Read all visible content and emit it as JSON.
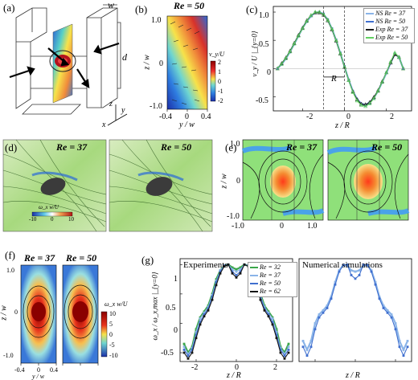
{
  "panels": {
    "a": {
      "label": "(a)",
      "axis_w": "w",
      "axis_d": "d",
      "axis_z": "z",
      "axis_y": "y",
      "axis_x": "x"
    },
    "b": {
      "label": "(b)",
      "re": "Re = 50",
      "ylabel": "z / w",
      "xlabel": "y / w",
      "yticks": [
        "1.0",
        "0",
        "-1.0"
      ],
      "xticks": [
        "-0.4",
        "0",
        "0.4"
      ],
      "cbar_title": "v_y/U",
      "cbar_ticks": [
        "2",
        "1",
        "0",
        "-1",
        "-2"
      ]
    },
    "c": {
      "label": "(c)",
      "ylabel": "v_y / U |_{y=0}",
      "xlabel": "z / R",
      "xticks": [
        "-2",
        "0",
        "2"
      ],
      "yticks": [
        "1.0",
        "0.5",
        "0",
        "-0.5"
      ],
      "annotation": "R",
      "legend": [
        "NS   Re = 37",
        "NS   Re = 50",
        "Exp  Re = 37",
        "Exp  Re = 50"
      ]
    },
    "d": {
      "label": "(d)",
      "re_left": "Re = 37",
      "re_right": "Re = 50",
      "cbar_title": "ω_x w/U",
      "cbar_ticks": [
        "-10",
        "0",
        "10"
      ]
    },
    "e": {
      "label": "(e)",
      "re_left": "Re = 37",
      "re_right": "Re = 50",
      "ylabel": "z / w",
      "yticks": [
        "1.0",
        "0",
        "-1.0"
      ],
      "xticks": [
        "-1.0",
        "0",
        "1.0"
      ]
    },
    "f": {
      "label": "(f)",
      "re_left": "Re = 37",
      "re_right": "Re = 50",
      "ylabel": "z / w",
      "xlabel": "y / w",
      "yticks": [
        "1.0",
        "0",
        "-1.0"
      ],
      "xticks": [
        "-0.4",
        "0",
        "0.4"
      ],
      "cbar_title": "ω_x w/U",
      "cbar_ticks": [
        "10",
        "5",
        "0",
        "-5",
        "-10"
      ]
    },
    "g": {
      "label": "(g)",
      "title_left": "Experiments",
      "title_right": "Numerical simulations",
      "ylabel": "ω_x / ω_x,max |_{y=0}",
      "xlabel_left": "z / R",
      "xlabel_right": "z / R",
      "xticks": [
        "-2",
        "0",
        "2"
      ],
      "yticks": [
        "1",
        "0.5",
        "0",
        "-0.5"
      ],
      "legend": [
        "Re = 32",
        "Re = 37",
        "Re = 50",
        "Re = 62"
      ]
    }
  },
  "colors": {
    "ns37": "#8ab4e8",
    "ns50": "#3f6fcf",
    "exp37": "#1a1a1a",
    "exp50": "#5fcf5f",
    "re32": "#3aa64a",
    "re62": "#151515"
  },
  "chart_data": [
    {
      "type": "line",
      "panel": "c",
      "xlabel": "z / R",
      "ylabel": "v_y / U |_{y=0}",
      "xlim": [
        -3.4,
        3.2
      ],
      "ylim": [
        -0.75,
        1.1
      ],
      "x": [
        -3.2,
        -3.0,
        -2.8,
        -2.6,
        -2.4,
        -2.2,
        -2.0,
        -1.8,
        -1.6,
        -1.4,
        -1.2,
        -1.0,
        -0.8,
        -0.6,
        -0.4,
        -0.2,
        0.0,
        0.2,
        0.4,
        0.6,
        0.8,
        1.0,
        1.2,
        1.4,
        1.6,
        1.8,
        2.0,
        2.2,
        2.4,
        2.6,
        2.8
      ],
      "series": [
        {
          "name": "NS Re = 37",
          "values": [
            0.0,
            0.08,
            0.18,
            0.3,
            0.44,
            0.58,
            0.72,
            0.84,
            0.93,
            0.99,
            1.0,
            0.96,
            0.86,
            0.7,
            0.5,
            0.27,
            0.03,
            -0.2,
            -0.4,
            -0.54,
            -0.62,
            -0.64,
            -0.6,
            -0.52,
            -0.4,
            -0.24,
            -0.08,
            0.1,
            0.26,
            0.2,
            0.0
          ]
        },
        {
          "name": "NS Re = 50",
          "values": [
            0.0,
            0.07,
            0.17,
            0.29,
            0.43,
            0.57,
            0.71,
            0.83,
            0.93,
            0.99,
            1.0,
            0.97,
            0.87,
            0.71,
            0.51,
            0.28,
            0.04,
            -0.2,
            -0.41,
            -0.56,
            -0.64,
            -0.66,
            -0.62,
            -0.53,
            -0.4,
            -0.24,
            -0.07,
            0.11,
            0.27,
            0.2,
            0.0
          ]
        },
        {
          "name": "Exp Re = 37",
          "values": [
            0.0,
            0.09,
            0.19,
            0.31,
            0.45,
            0.59,
            0.72,
            0.85,
            0.94,
            0.99,
            0.99,
            0.95,
            0.85,
            0.69,
            0.49,
            0.26,
            0.02,
            -0.21,
            -0.41,
            -0.55,
            -0.63,
            -0.64,
            -0.6,
            -0.51,
            -0.39,
            -0.23,
            -0.07,
            0.1,
            0.25,
            0.2,
            0.0
          ]
        },
        {
          "name": "Exp Re = 50",
          "values": [
            0.0,
            0.08,
            0.18,
            0.3,
            0.44,
            0.58,
            0.71,
            0.84,
            0.94,
            1.0,
            1.0,
            0.96,
            0.86,
            0.7,
            0.5,
            0.27,
            0.03,
            -0.21,
            -0.42,
            -0.57,
            -0.65,
            -0.67,
            -0.62,
            -0.53,
            -0.4,
            -0.24,
            -0.07,
            0.12,
            0.28,
            0.2,
            0.0
          ]
        }
      ]
    },
    {
      "type": "line",
      "panel": "g-experiments",
      "xlabel": "z / R",
      "ylabel": "ω_x / ω_x,max |_{y=0}",
      "xlim": [
        -2.8,
        2.8
      ],
      "ylim": [
        -0.65,
        1.1
      ],
      "x": [
        -2.6,
        -2.4,
        -2.2,
        -2.0,
        -1.8,
        -1.6,
        -1.4,
        -1.2,
        -1.0,
        -0.8,
        -0.6,
        -0.4,
        -0.2,
        0.0,
        0.2,
        0.4,
        0.6,
        0.8,
        1.0,
        1.2,
        1.4,
        1.6,
        1.8,
        2.0,
        2.2,
        2.4,
        2.6
      ],
      "series": [
        {
          "name": "Re = 32",
          "values": [
            -0.35,
            -0.5,
            -0.4,
            -0.1,
            0.1,
            0.2,
            0.3,
            0.5,
            0.75,
            0.9,
            0.98,
            1.0,
            0.95,
            0.92,
            0.95,
            1.0,
            0.98,
            0.9,
            0.75,
            0.5,
            0.3,
            0.2,
            0.1,
            -0.1,
            -0.4,
            -0.5,
            -0.35
          ]
        },
        {
          "name": "Re = 37",
          "values": [
            -0.4,
            -0.52,
            -0.42,
            -0.15,
            0.08,
            0.18,
            0.28,
            0.48,
            0.72,
            0.9,
            0.98,
            1.0,
            0.92,
            0.88,
            0.92,
            1.0,
            0.98,
            0.9,
            0.72,
            0.48,
            0.28,
            0.18,
            0.08,
            -0.15,
            -0.42,
            -0.52,
            -0.4
          ]
        },
        {
          "name": "Re = 50",
          "values": [
            -0.45,
            -0.55,
            -0.45,
            -0.2,
            0.02,
            0.15,
            0.25,
            0.45,
            0.7,
            0.88,
            0.98,
            1.0,
            0.88,
            0.82,
            0.88,
            1.0,
            0.98,
            0.88,
            0.7,
            0.45,
            0.25,
            0.15,
            0.02,
            -0.2,
            -0.45,
            -0.55,
            -0.45
          ]
        },
        {
          "name": "Re = 62",
          "values": [
            -0.5,
            -0.6,
            -0.5,
            -0.25,
            -0.02,
            0.12,
            0.22,
            0.4,
            0.65,
            0.85,
            0.97,
            1.0,
            0.85,
            0.78,
            0.85,
            1.0,
            0.97,
            0.85,
            0.65,
            0.4,
            0.22,
            0.12,
            -0.02,
            -0.25,
            -0.5,
            -0.6,
            -0.5
          ]
        }
      ]
    },
    {
      "type": "line",
      "panel": "g-simulations",
      "xlabel": "z / R",
      "xlim": [
        -2.8,
        2.8
      ],
      "ylim": [
        -0.65,
        1.1
      ],
      "x": [
        -2.6,
        -2.4,
        -2.2,
        -2.0,
        -1.8,
        -1.6,
        -1.4,
        -1.2,
        -1.0,
        -0.8,
        -0.6,
        -0.4,
        -0.2,
        0.0,
        0.2,
        0.4,
        0.6,
        0.8,
        1.0,
        1.2,
        1.4,
        1.6,
        1.8,
        2.0,
        2.2,
        2.4,
        2.6
      ],
      "series": [
        {
          "name": "Re = 37",
          "values": [
            -0.3,
            -0.45,
            -0.3,
            0.0,
            0.15,
            0.22,
            0.3,
            0.45,
            0.7,
            0.9,
            0.99,
            0.98,
            0.9,
            0.88,
            0.9,
            0.98,
            0.99,
            0.9,
            0.7,
            0.45,
            0.3,
            0.22,
            0.15,
            0.0,
            -0.3,
            -0.45,
            -0.3
          ]
        },
        {
          "name": "Re = 50",
          "values": [
            -0.4,
            -0.55,
            -0.4,
            -0.1,
            0.1,
            0.18,
            0.26,
            0.42,
            0.66,
            0.88,
            0.99,
            1.0,
            0.82,
            0.76,
            0.82,
            1.0,
            0.99,
            0.88,
            0.66,
            0.42,
            0.26,
            0.18,
            0.1,
            -0.1,
            -0.4,
            -0.55,
            -0.4
          ]
        }
      ]
    }
  ]
}
